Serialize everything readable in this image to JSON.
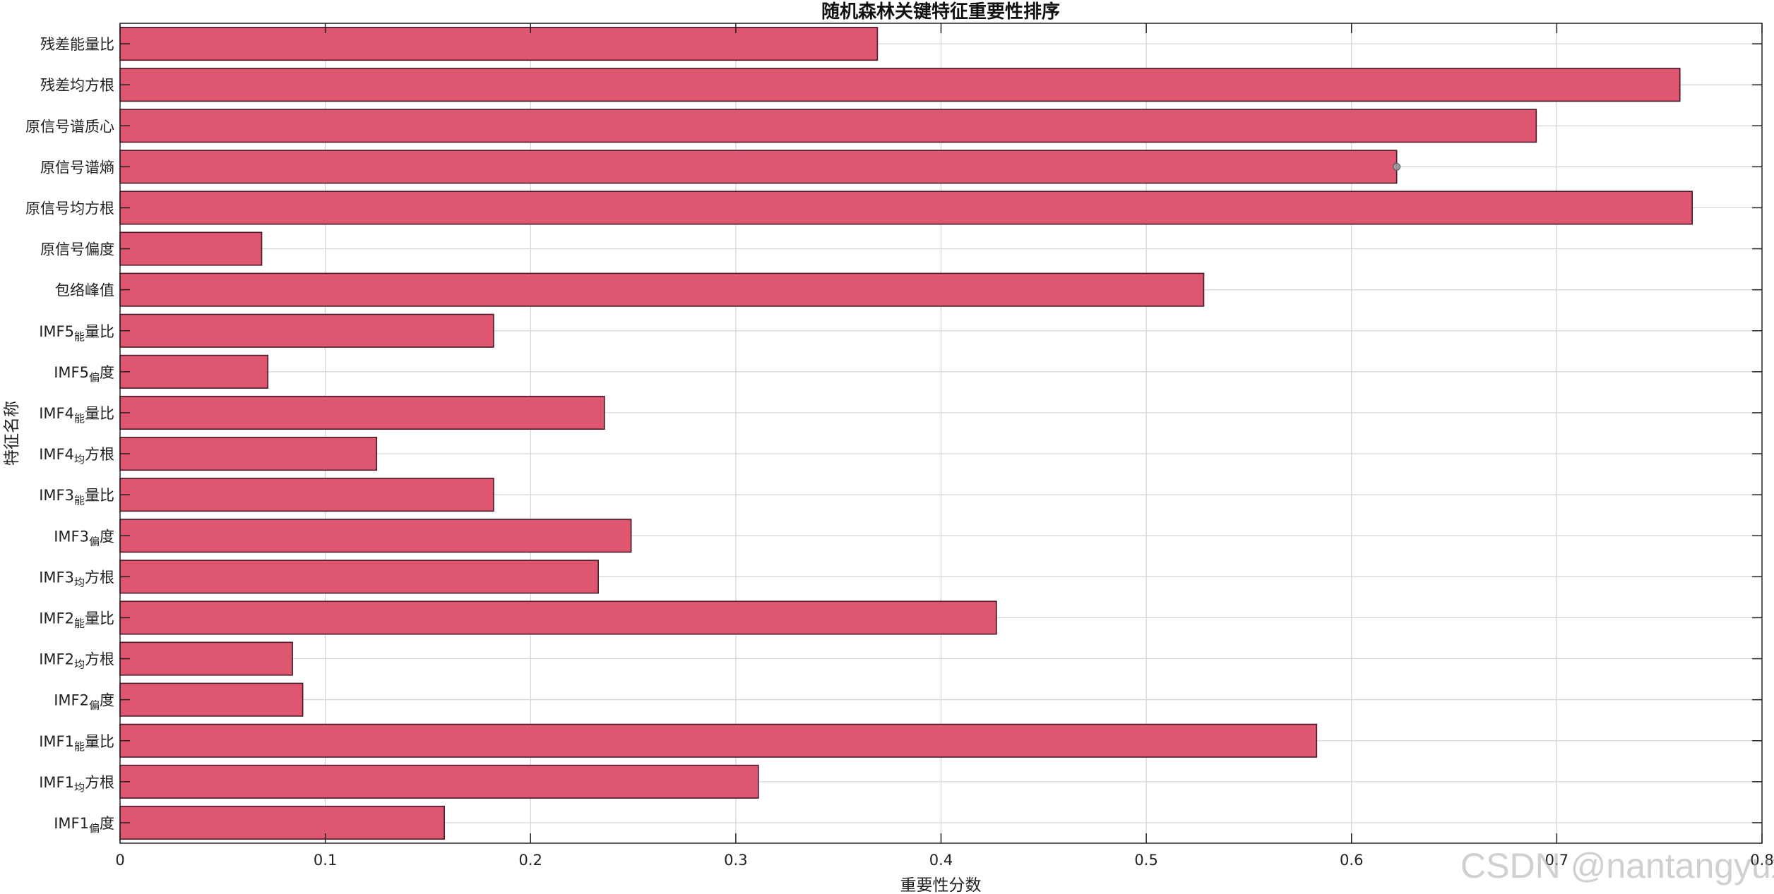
{
  "chart_data": {
    "type": "bar",
    "orientation": "horizontal",
    "title": "随机森林关键特征重要性排序",
    "xlabel": "重要性分数",
    "ylabel": "特征名称",
    "xlim": [
      0,
      0.8
    ],
    "xticks": [
      "0",
      "0.1",
      "0.2",
      "0.3",
      "0.4",
      "0.5",
      "0.6",
      "0.7",
      "0.8"
    ],
    "grid": true,
    "bar_color": "#de566f",
    "edge_color": "#4a1a2a",
    "categories": [
      {
        "main": "残差能量比",
        "sub": ""
      },
      {
        "main": "残差均方根",
        "sub": ""
      },
      {
        "main": "原信号谱质心",
        "sub": ""
      },
      {
        "main": "原信号谱熵",
        "sub": ""
      },
      {
        "main": "原信号均方根",
        "sub": ""
      },
      {
        "main": "原信号偏度",
        "sub": ""
      },
      {
        "main": "包络峰值",
        "sub": ""
      },
      {
        "main": "IMF5",
        "sub": "能",
        "tail": "量比"
      },
      {
        "main": "IMF5",
        "sub": "偏",
        "tail": "度"
      },
      {
        "main": "IMF4",
        "sub": "能",
        "tail": "量比"
      },
      {
        "main": "IMF4",
        "sub": "均",
        "tail": "方根"
      },
      {
        "main": "IMF3",
        "sub": "能",
        "tail": "量比"
      },
      {
        "main": "IMF3",
        "sub": "偏",
        "tail": "度"
      },
      {
        "main": "IMF3",
        "sub": "均",
        "tail": "方根"
      },
      {
        "main": "IMF2",
        "sub": "能",
        "tail": "量比"
      },
      {
        "main": "IMF2",
        "sub": "均",
        "tail": "方根"
      },
      {
        "main": "IMF2",
        "sub": "偏",
        "tail": "度"
      },
      {
        "main": "IMF1",
        "sub": "能",
        "tail": "量比"
      },
      {
        "main": "IMF1",
        "sub": "均",
        "tail": "方根"
      },
      {
        "main": "IMF1",
        "sub": "偏",
        "tail": "度"
      }
    ],
    "values": [
      0.369,
      0.76,
      0.69,
      0.622,
      0.766,
      0.069,
      0.528,
      0.182,
      0.072,
      0.236,
      0.125,
      0.182,
      0.249,
      0.233,
      0.427,
      0.084,
      0.089,
      0.583,
      0.311,
      0.158
    ]
  },
  "watermark": "CSDN @nantangyuxi"
}
